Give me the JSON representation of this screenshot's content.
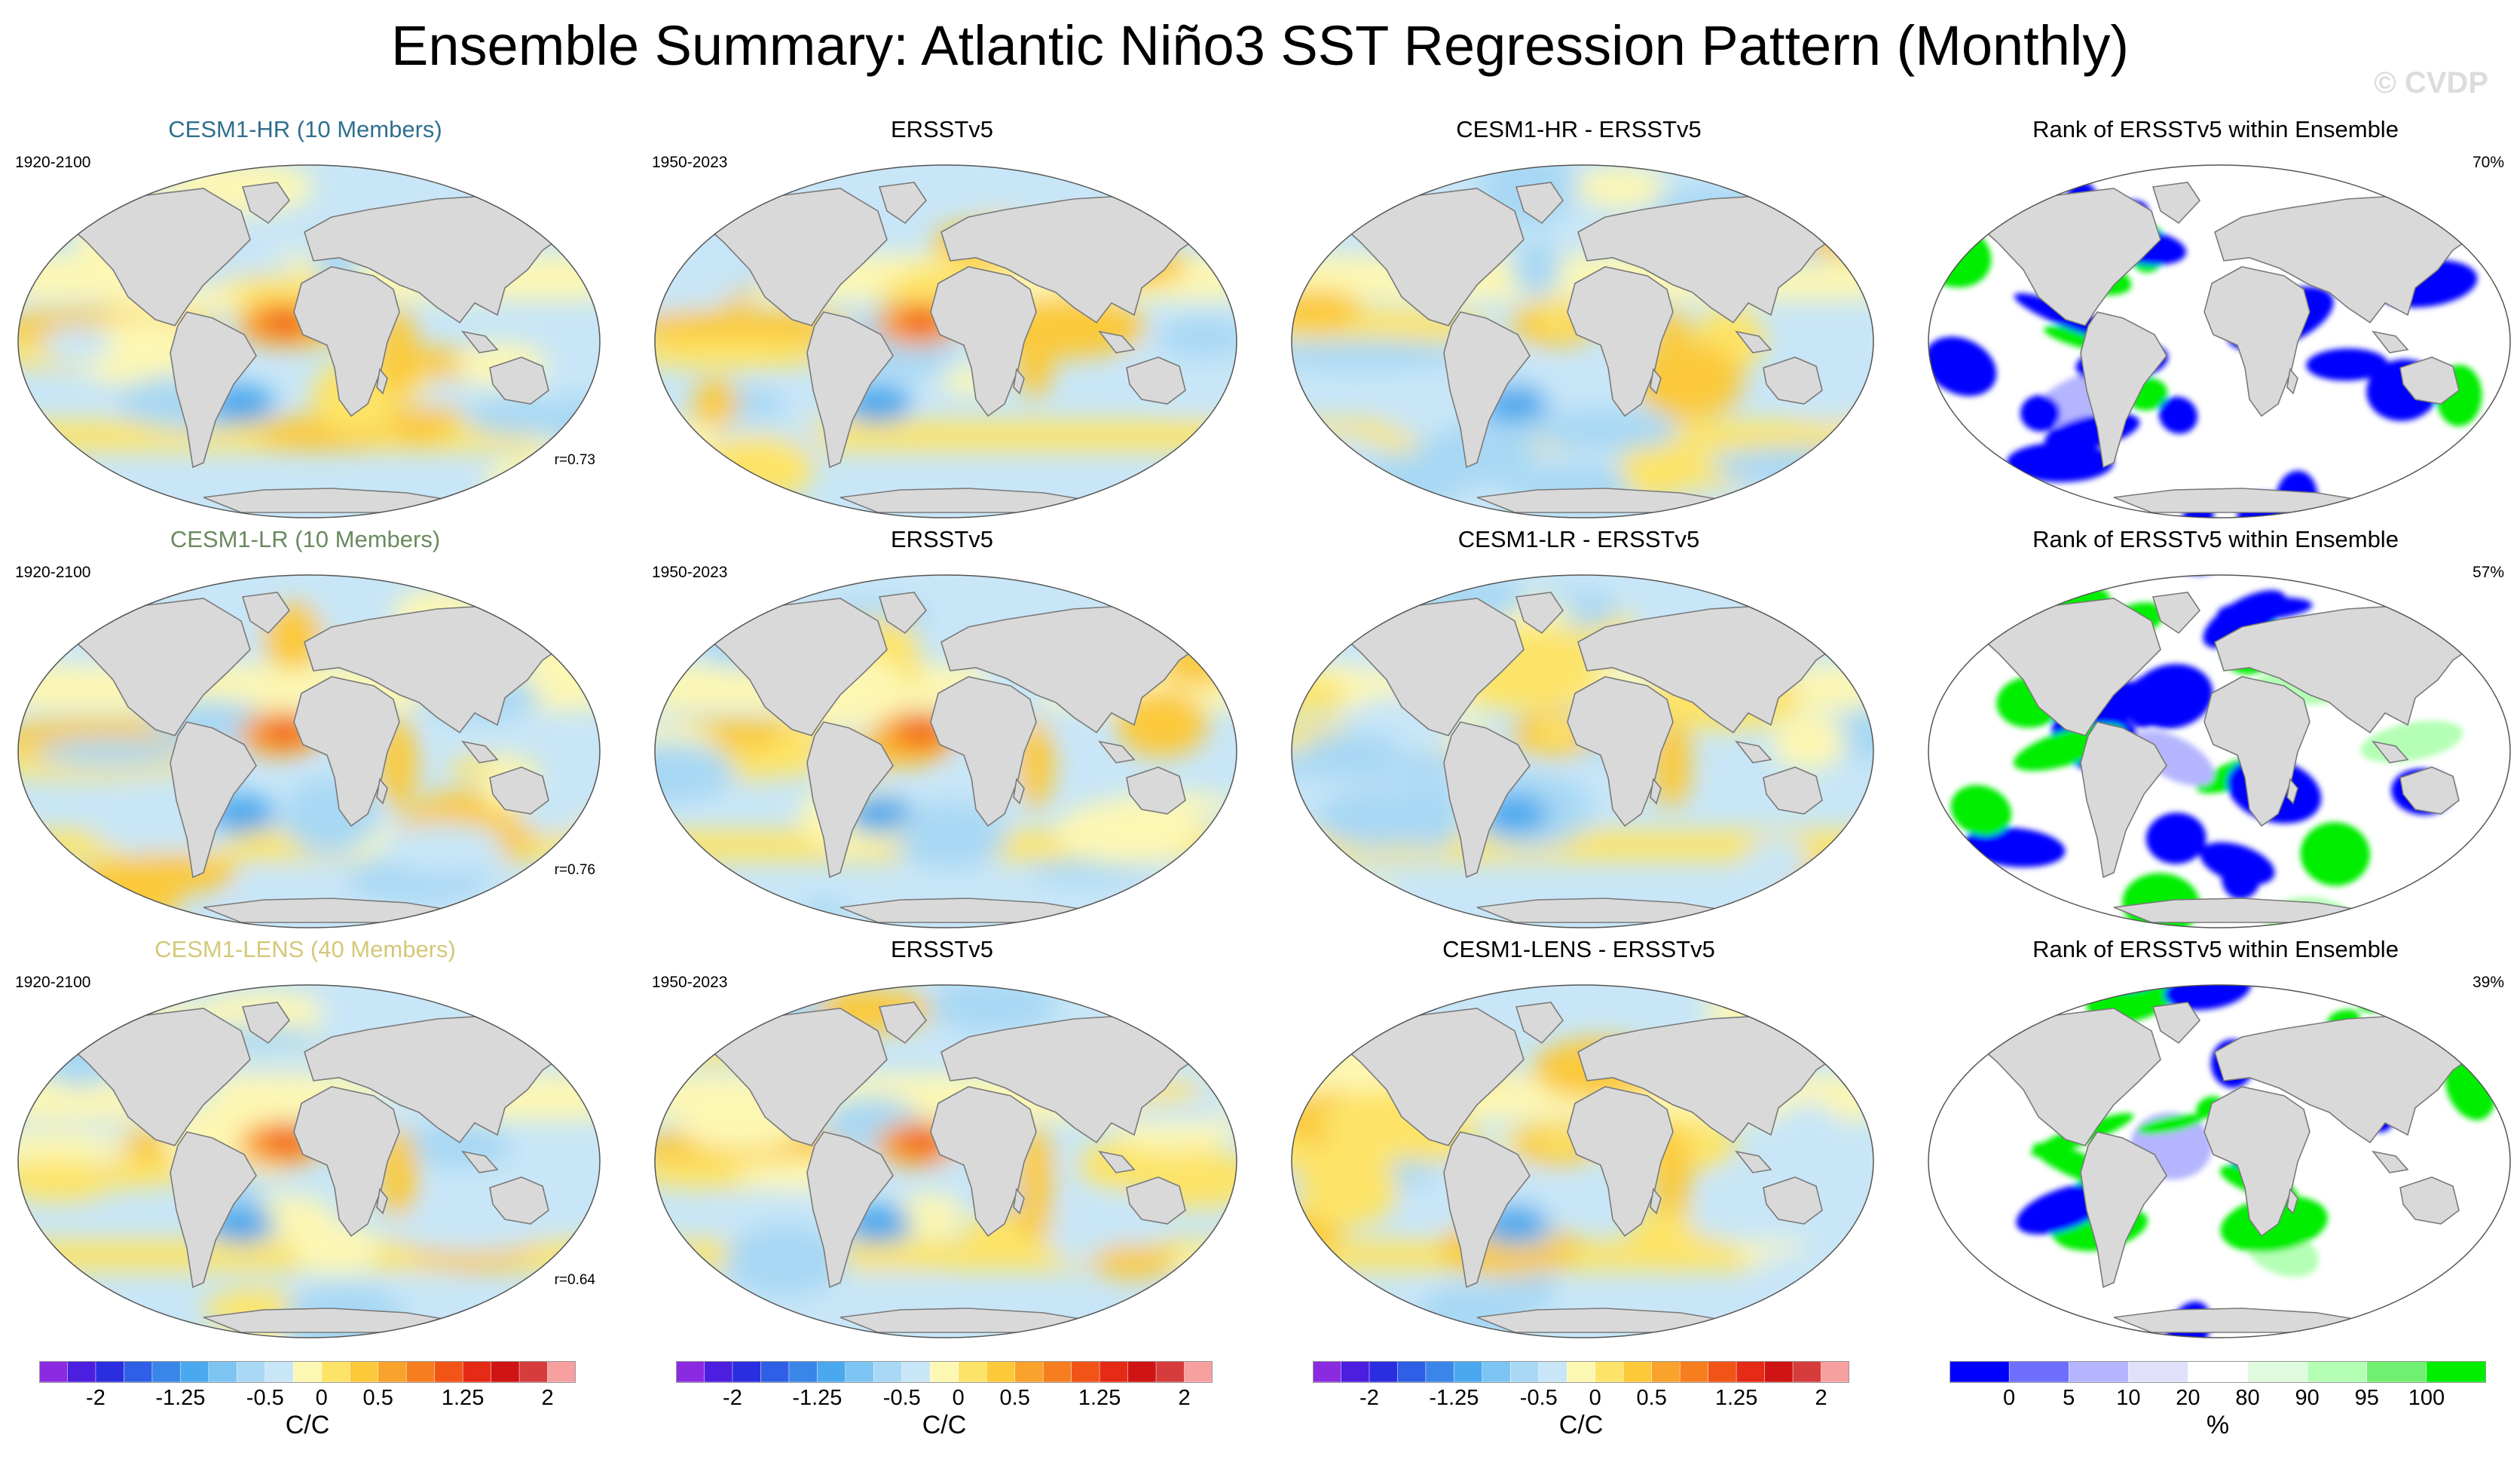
{
  "title": "Ensemble Summary: Atlantic Niño3 SST Regression Pattern (Monthly)",
  "watermark": "© CVDP",
  "colors": {
    "land": "#d9d9d9",
    "coast": "#7a7a7a",
    "model_title_hr": "#2f6f8f",
    "model_title_lr": "#6a8a5f",
    "model_title_lens": "#d4c878"
  },
  "chart_data": {
    "type": "heatmap",
    "projection": "Robinson (global)",
    "rows": [
      {
        "panels": [
          {
            "title": "CESM1-HR (10 Members)",
            "title_color": "#2f6f8f",
            "period": "1920-2100",
            "corr": "r=0.73",
            "kind": "field",
            "seed": 1
          },
          {
            "title": "ERSSTv5",
            "period": "1950-2023",
            "kind": "field",
            "seed": 2
          },
          {
            "title": "CESM1-HR - ERSSTv5",
            "kind": "diff",
            "seed": 3
          },
          {
            "title": "Rank of ERSSTv5 within Ensemble",
            "percent": "70%",
            "kind": "rank",
            "seed": 4
          }
        ]
      },
      {
        "panels": [
          {
            "title": "CESM1-LR (10 Members)",
            "title_color": "#6a8a5f",
            "period": "1920-2100",
            "corr": "r=0.76",
            "kind": "field",
            "seed": 5
          },
          {
            "title": "ERSSTv5",
            "period": "1950-2023",
            "kind": "field",
            "seed": 6
          },
          {
            "title": "CESM1-LR - ERSSTv5",
            "kind": "diff",
            "seed": 7
          },
          {
            "title": "Rank of ERSSTv5 within Ensemble",
            "percent": "57%",
            "kind": "rank",
            "seed": 8
          }
        ]
      },
      {
        "panels": [
          {
            "title": "CESM1-LENS (40 Members)",
            "title_color": "#d4c878",
            "period": "1920-2100",
            "corr": "r=0.64",
            "kind": "field",
            "seed": 9
          },
          {
            "title": "ERSSTv5",
            "period": "1950-2023",
            "kind": "field",
            "seed": 10
          },
          {
            "title": "CESM1-LENS - ERSSTv5",
            "kind": "diff",
            "seed": 11
          },
          {
            "title": "Rank of ERSSTv5 within Ensemble",
            "percent": "39%",
            "kind": "rank",
            "seed": 12
          }
        ]
      }
    ],
    "colorbars": [
      {
        "units": "C/C",
        "levels": [
          -2.25,
          -2,
          -1.75,
          -1.5,
          -1.25,
          -1,
          -0.75,
          -0.5,
          -0.25,
          0,
          0.25,
          0.5,
          0.75,
          1,
          1.25,
          1.5,
          1.75,
          2,
          2.25
        ],
        "tick_labels": [
          "-2",
          "-1.25",
          "-0.5",
          "0",
          "0.5",
          "1.25",
          "2"
        ],
        "tick_values": [
          -2,
          -1.25,
          -0.5,
          0,
          0.5,
          1.25,
          2
        ],
        "colors": [
          "#8a2be2",
          "#4b1ee0",
          "#2a2ee0",
          "#2f5fe6",
          "#3a86e8",
          "#4aa8ee",
          "#7cc4f2",
          "#a8d8f4",
          "#c8e6f7",
          "#fdf7b4",
          "#fde468",
          "#fbc93a",
          "#f9a22c",
          "#f77e1e",
          "#f25418",
          "#e52b16",
          "#cf1414",
          "#d63c3c",
          "#f7a0a0"
        ]
      },
      {
        "units": "C/C",
        "levels": [
          -2.25,
          -2,
          -1.75,
          -1.5,
          -1.25,
          -1,
          -0.75,
          -0.5,
          -0.25,
          0,
          0.25,
          0.5,
          0.75,
          1,
          1.25,
          1.5,
          1.75,
          2,
          2.25
        ],
        "tick_labels": [
          "-2",
          "-1.25",
          "-0.5",
          "0",
          "0.5",
          "1.25",
          "2"
        ],
        "tick_values": [
          -2,
          -1.25,
          -0.5,
          0,
          0.5,
          1.25,
          2
        ],
        "colors": [
          "#8a2be2",
          "#4b1ee0",
          "#2a2ee0",
          "#2f5fe6",
          "#3a86e8",
          "#4aa8ee",
          "#7cc4f2",
          "#a8d8f4",
          "#c8e6f7",
          "#fdf7b4",
          "#fde468",
          "#fbc93a",
          "#f9a22c",
          "#f77e1e",
          "#f25418",
          "#e52b16",
          "#cf1414",
          "#d63c3c",
          "#f7a0a0"
        ]
      },
      {
        "units": "C/C",
        "levels": [
          -2.25,
          -2,
          -1.75,
          -1.5,
          -1.25,
          -1,
          -0.75,
          -0.5,
          -0.25,
          0,
          0.25,
          0.5,
          0.75,
          1,
          1.25,
          1.5,
          1.75,
          2,
          2.25
        ],
        "tick_labels": [
          "-2",
          "-1.25",
          "-0.5",
          "0",
          "0.5",
          "1.25",
          "2"
        ],
        "tick_values": [
          -2,
          -1.25,
          -0.5,
          0,
          0.5,
          1.25,
          2
        ],
        "colors": [
          "#8a2be2",
          "#4b1ee0",
          "#2a2ee0",
          "#2f5fe6",
          "#3a86e8",
          "#4aa8ee",
          "#7cc4f2",
          "#a8d8f4",
          "#c8e6f7",
          "#fdf7b4",
          "#fde468",
          "#fbc93a",
          "#f9a22c",
          "#f77e1e",
          "#f25418",
          "#e52b16",
          "#cf1414",
          "#d63c3c",
          "#f7a0a0"
        ]
      },
      {
        "units": "%",
        "levels": [
          0,
          5,
          10,
          20,
          80,
          90,
          95,
          100
        ],
        "tick_labels": [
          "0",
          "5",
          "10",
          "20",
          "80",
          "90",
          "95",
          "100"
        ],
        "tick_values": [
          0,
          5,
          10,
          20,
          80,
          90,
          95,
          100
        ],
        "colors": [
          "#0000ff",
          "#6f6fff",
          "#b5b5ff",
          "#e0e0fa",
          "#ffffff",
          "#e0fae0",
          "#b5ffb5",
          "#70f070",
          "#00ee00"
        ]
      }
    ]
  }
}
